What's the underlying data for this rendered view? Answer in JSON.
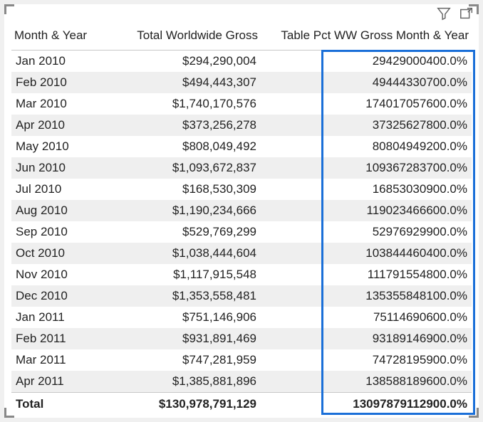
{
  "colors": {
    "highlight_border": "#1a6fd8",
    "row_alt_bg": "#efefef",
    "header_border": "#c8c8c8",
    "corner": "#888888"
  },
  "toolbar": {
    "filter_icon": "filter-icon",
    "focus_icon": "focus-mode-icon"
  },
  "table": {
    "columns": [
      {
        "label": "Month & Year",
        "align": "left"
      },
      {
        "label": "Total Worldwide Gross",
        "align": "right"
      },
      {
        "label": "Table Pct WW Gross Month & Year",
        "align": "right"
      }
    ],
    "rows": [
      {
        "month": "Jan 2010",
        "gross": "$294,290,004",
        "pct": "29429000400.0%"
      },
      {
        "month": "Feb 2010",
        "gross": "$494,443,307",
        "pct": "49444330700.0%"
      },
      {
        "month": "Mar 2010",
        "gross": "$1,740,170,576",
        "pct": "174017057600.0%"
      },
      {
        "month": "Apr 2010",
        "gross": "$373,256,278",
        "pct": "37325627800.0%"
      },
      {
        "month": "May 2010",
        "gross": "$808,049,492",
        "pct": "80804949200.0%"
      },
      {
        "month": "Jun 2010",
        "gross": "$1,093,672,837",
        "pct": "109367283700.0%"
      },
      {
        "month": "Jul 2010",
        "gross": "$168,530,309",
        "pct": "16853030900.0%"
      },
      {
        "month": "Aug 2010",
        "gross": "$1,190,234,666",
        "pct": "119023466600.0%"
      },
      {
        "month": "Sep 2010",
        "gross": "$529,769,299",
        "pct": "52976929900.0%"
      },
      {
        "month": "Oct 2010",
        "gross": "$1,038,444,604",
        "pct": "103844460400.0%"
      },
      {
        "month": "Nov 2010",
        "gross": "$1,117,915,548",
        "pct": "111791554800.0%"
      },
      {
        "month": "Dec 2010",
        "gross": "$1,353,558,481",
        "pct": "135355848100.0%"
      },
      {
        "month": "Jan 2011",
        "gross": "$751,146,906",
        "pct": "75114690600.0%"
      },
      {
        "month": "Feb 2011",
        "gross": "$931,891,469",
        "pct": "93189146900.0%"
      },
      {
        "month": "Mar 2011",
        "gross": "$747,281,959",
        "pct": "74728195900.0%"
      },
      {
        "month": "Apr 2011",
        "gross": "$1,385,881,896",
        "pct": "138588189600.0%"
      }
    ],
    "total": {
      "label": "Total",
      "gross": "$130,978,791,129",
      "pct": "13097879112900.0%"
    }
  }
}
